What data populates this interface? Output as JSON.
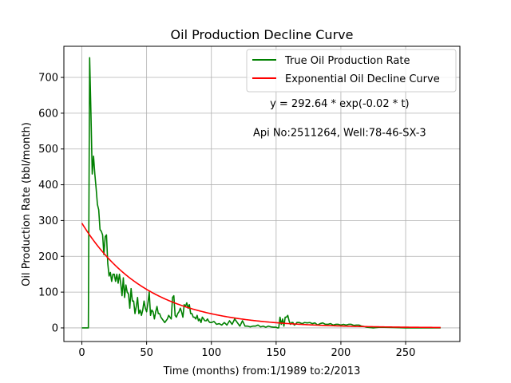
{
  "chart_data": {
    "type": "line",
    "title": "Oil Production Decline Curve",
    "xlabel": "Time (months) from:1/1989 to:2/2013",
    "ylabel": "Oil Production Rate (bbl/month)",
    "xlim": [
      -13.9,
      291.9
    ],
    "ylim": [
      -38,
      787
    ],
    "xticks": [
      0,
      50,
      100,
      150,
      200,
      250
    ],
    "yticks": [
      0,
      100,
      200,
      300,
      400,
      500,
      600,
      700
    ],
    "grid": true,
    "legend_position": "top-right",
    "annotations": [
      {
        "text": "y = 292.64 * exp(-0.02 * t)",
        "x": 199,
        "y": 628
      },
      {
        "text": "Api No:2511264, Well:78-46-SX-3",
        "x": 199,
        "y": 546
      }
    ],
    "series": [
      {
        "name": "True Oil Production Rate",
        "color": "#008000",
        "kind": "observed",
        "x": [
          0,
          1,
          2,
          3,
          4,
          5,
          6,
          7,
          8,
          9,
          10,
          11,
          12,
          13,
          14,
          15,
          16,
          17,
          18,
          19,
          20,
          21,
          22,
          23,
          24,
          25,
          26,
          27,
          28,
          29,
          30,
          31,
          32,
          33,
          34,
          35,
          36,
          37,
          38,
          39,
          40,
          41,
          42,
          43,
          44,
          45,
          46,
          47,
          48,
          49,
          50,
          51,
          52,
          53,
          54,
          55,
          56,
          57,
          58,
          59,
          60,
          61,
          62,
          63,
          64,
          65,
          66,
          67,
          68,
          69,
          70,
          71,
          72,
          73,
          74,
          75,
          76,
          77,
          78,
          79,
          80,
          81,
          82,
          83,
          84,
          85,
          86,
          87,
          88,
          89,
          90,
          91,
          92,
          93,
          94,
          95,
          96,
          97,
          98,
          99,
          100,
          102,
          104,
          106,
          108,
          110,
          112,
          114,
          116,
          118,
          120,
          122,
          124,
          126,
          128,
          130,
          132,
          134,
          136,
          138,
          140,
          142,
          144,
          146,
          148,
          150,
          151,
          152,
          153,
          154,
          155,
          156,
          157,
          158,
          159,
          160,
          161,
          162,
          163,
          164,
          165,
          166,
          168,
          170,
          172,
          174,
          176,
          178,
          180,
          182,
          184,
          186,
          188,
          190,
          192,
          194,
          196,
          198,
          200,
          202,
          204,
          206,
          208,
          210,
          212,
          214,
          216,
          218,
          220,
          225,
          230,
          240,
          250,
          260,
          270,
          277
        ],
        "y": [
          0,
          0,
          0,
          0,
          0,
          0,
          755,
          600,
          430,
          480,
          430,
          390,
          345,
          330,
          275,
          270,
          260,
          205,
          255,
          260,
          180,
          145,
          155,
          130,
          150,
          150,
          130,
          150,
          125,
          150,
          125,
          90,
          140,
          85,
          120,
          100,
          95,
          55,
          110,
          75,
          75,
          40,
          60,
          85,
          40,
          50,
          35,
          50,
          75,
          55,
          45,
          70,
          100,
          35,
          50,
          45,
          25,
          45,
          60,
          40,
          40,
          30,
          25,
          20,
          15,
          20,
          25,
          35,
          30,
          25,
          85,
          90,
          35,
          30,
          40,
          45,
          55,
          45,
          30,
          65,
          60,
          70,
          55,
          65,
          40,
          40,
          30,
          30,
          25,
          35,
          20,
          25,
          15,
          30,
          25,
          20,
          20,
          25,
          18,
          15,
          15,
          18,
          10,
          12,
          8,
          15,
          8,
          20,
          10,
          25,
          15,
          5,
          20,
          5,
          5,
          3,
          5,
          5,
          8,
          3,
          5,
          2,
          5,
          3,
          2,
          2,
          0,
          0,
          30,
          10,
          25,
          5,
          30,
          30,
          35,
          20,
          10,
          15,
          15,
          8,
          10,
          15,
          15,
          12,
          15,
          14,
          15,
          12,
          14,
          8,
          12,
          14,
          10,
          10,
          12,
          8,
          10,
          10,
          8,
          10,
          8,
          10,
          10,
          7,
          8,
          8,
          5,
          4,
          2,
          0,
          2,
          1,
          0,
          0,
          0,
          0
        ]
      },
      {
        "name": "Exponential Oil Decline Curve",
        "color": "#ff0000",
        "kind": "model",
        "a": 292.64,
        "b": -0.02,
        "x_range": [
          0,
          277
        ]
      }
    ]
  }
}
